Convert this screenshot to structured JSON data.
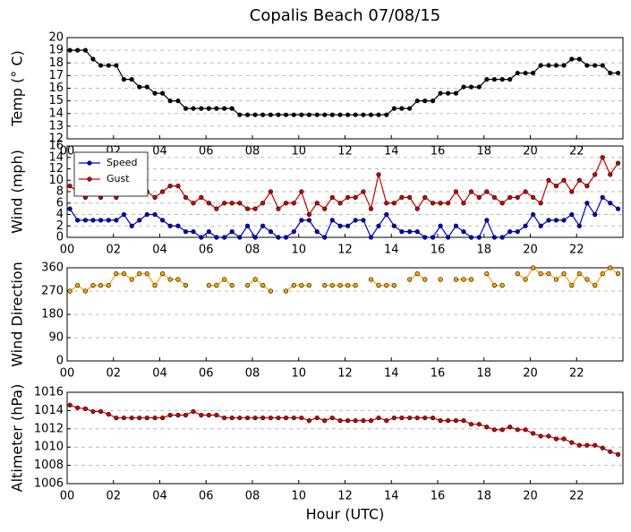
{
  "chart_data": [
    {
      "type": "line",
      "title": "Copalis Beach 07/08/15",
      "ylabel": "Temp (° C)",
      "x": [
        0.12,
        0.45,
        0.79,
        1.12,
        1.45,
        1.79,
        2.12,
        2.45,
        2.79,
        3.12,
        3.45,
        3.79,
        4.12,
        4.45,
        4.79,
        5.12,
        5.45,
        5.79,
        6.12,
        6.45,
        6.79,
        7.12,
        7.45,
        7.79,
        8.12,
        8.45,
        8.79,
        9.12,
        9.45,
        9.79,
        10.12,
        10.45,
        10.79,
        11.12,
        11.45,
        11.79,
        12.12,
        12.45,
        12.79,
        13.12,
        13.45,
        13.79,
        14.12,
        14.45,
        14.79,
        15.12,
        15.45,
        15.79,
        16.12,
        16.45,
        16.79,
        17.12,
        17.45,
        17.79,
        18.12,
        18.45,
        18.79,
        19.12,
        19.45,
        19.79,
        20.12,
        20.45,
        20.79,
        21.12,
        21.45,
        21.79,
        22.12,
        22.45,
        22.79,
        23.12,
        23.45,
        23.79
      ],
      "series": [
        {
          "name": "Temp",
          "color": "#000000",
          "values": [
            19,
            19,
            19,
            18.3,
            17.8,
            17.8,
            17.8,
            16.7,
            16.7,
            16.1,
            16.1,
            15.6,
            15.6,
            15,
            15,
            14.4,
            14.4,
            14.4,
            14.4,
            14.4,
            14.4,
            14.4,
            13.9,
            13.9,
            13.9,
            13.9,
            13.9,
            13.9,
            13.9,
            13.9,
            13.9,
            13.9,
            13.9,
            13.9,
            13.9,
            13.9,
            13.9,
            13.9,
            13.9,
            13.9,
            13.9,
            13.9,
            14.4,
            14.4,
            14.4,
            15,
            15,
            15,
            15.6,
            15.6,
            15.6,
            16.1,
            16.1,
            16.1,
            16.7,
            16.7,
            16.7,
            16.7,
            17.2,
            17.2,
            17.2,
            17.8,
            17.8,
            17.8,
            17.8,
            18.3,
            18.3,
            17.8,
            17.8,
            17.8,
            17.2,
            17.2
          ]
        }
      ],
      "xlim": [
        0,
        24
      ],
      "xticks": [
        {
          "value": 0,
          "label": "00"
        },
        {
          "value": 2,
          "label": "02"
        },
        {
          "value": 4,
          "label": "04"
        },
        {
          "value": 6,
          "label": "06"
        },
        {
          "value": 8,
          "label": "08"
        },
        {
          "value": 10,
          "label": "10"
        },
        {
          "value": 12,
          "label": "12"
        },
        {
          "value": 14,
          "label": "14"
        },
        {
          "value": 16,
          "label": "16"
        },
        {
          "value": 18,
          "label": "18"
        },
        {
          "value": 20,
          "label": "20"
        },
        {
          "value": 22,
          "label": "22"
        }
      ],
      "ylim": [
        12,
        20
      ],
      "yticks": [
        12,
        13,
        14,
        15,
        16,
        17,
        18,
        19,
        20
      ],
      "grid": true
    },
    {
      "type": "line",
      "ylabel": "Wind (mph)",
      "legend": "upper left",
      "x": [
        0.12,
        0.45,
        0.79,
        1.12,
        1.45,
        1.79,
        2.12,
        2.45,
        2.79,
        3.12,
        3.45,
        3.79,
        4.12,
        4.45,
        4.79,
        5.12,
        5.45,
        5.79,
        6.12,
        6.45,
        6.79,
        7.12,
        7.45,
        7.79,
        8.12,
        8.45,
        8.79,
        9.12,
        9.45,
        9.79,
        10.12,
        10.45,
        10.79,
        11.12,
        11.45,
        11.79,
        12.12,
        12.45,
        12.79,
        13.12,
        13.45,
        13.79,
        14.12,
        14.45,
        14.79,
        15.12,
        15.45,
        15.79,
        16.12,
        16.45,
        16.79,
        17.12,
        17.45,
        17.79,
        18.12,
        18.45,
        18.79,
        19.12,
        19.45,
        19.79,
        20.12,
        20.45,
        20.79,
        21.12,
        21.45,
        21.79,
        22.12,
        22.45,
        22.79,
        23.12,
        23.45,
        23.79
      ],
      "series": [
        {
          "name": "Speed",
          "color": "#0000cc",
          "values": [
            5,
            3,
            3,
            3,
            3,
            3,
            3,
            4,
            2,
            3,
            4,
            4,
            3,
            2,
            2,
            1,
            1,
            0,
            1,
            0,
            0,
            1,
            0,
            2,
            0,
            2,
            1,
            0,
            0,
            1,
            3,
            3,
            1,
            0,
            3,
            2,
            2,
            3,
            3,
            0,
            2,
            4,
            2,
            1,
            1,
            1,
            0,
            0,
            2,
            0,
            2,
            1,
            0,
            0,
            3,
            0,
            0,
            1,
            1,
            2,
            4,
            2,
            3,
            3,
            3,
            4,
            2,
            6,
            4,
            7,
            6,
            5
          ]
        },
        {
          "name": "Gust",
          "color": "#cc0000",
          "values": [
            9,
            8,
            7,
            8,
            7,
            8,
            7,
            8,
            8,
            8,
            8,
            7,
            8,
            9,
            9,
            7,
            6,
            7,
            6,
            5,
            6,
            6,
            6,
            5,
            5,
            6,
            8,
            5,
            6,
            6,
            8,
            4,
            6,
            5,
            7,
            6,
            7,
            7,
            8,
            5,
            11,
            6,
            6,
            7,
            7,
            5,
            7,
            6,
            6,
            6,
            8,
            6,
            8,
            7,
            8,
            7,
            6,
            7,
            7,
            8,
            7,
            6,
            10,
            9,
            10,
            8,
            10,
            9,
            11,
            14,
            11,
            13
          ]
        }
      ],
      "xlim": [
        0,
        24
      ],
      "xticks": [
        {
          "value": 0,
          "label": "00"
        },
        {
          "value": 2,
          "label": "02"
        },
        {
          "value": 4,
          "label": "04"
        },
        {
          "value": 6,
          "label": "06"
        },
        {
          "value": 8,
          "label": "08"
        },
        {
          "value": 10,
          "label": "10"
        },
        {
          "value": 12,
          "label": "12"
        },
        {
          "value": 14,
          "label": "14"
        },
        {
          "value": 16,
          "label": "16"
        },
        {
          "value": 18,
          "label": "18"
        },
        {
          "value": 20,
          "label": "20"
        },
        {
          "value": 22,
          "label": "22"
        }
      ],
      "ylim": [
        0,
        16
      ],
      "yticks": [
        0,
        2,
        4,
        6,
        8,
        10,
        12,
        14,
        16
      ],
      "grid": true
    },
    {
      "type": "line",
      "ylabel": "Wind Direction",
      "x": [
        0.12,
        0.45,
        0.79,
        1.12,
        1.45,
        1.79,
        2.12,
        2.45,
        2.79,
        3.12,
        3.45,
        3.79,
        4.12,
        4.45,
        4.79,
        5.12,
        5.45,
        5.79,
        6.12,
        6.45,
        6.79,
        7.12,
        7.45,
        7.79,
        8.12,
        8.45,
        8.79,
        9.12,
        9.45,
        9.79,
        10.12,
        10.45,
        10.79,
        11.12,
        11.45,
        11.79,
        12.12,
        12.45,
        12.79,
        13.12,
        13.45,
        13.79,
        14.12,
        14.45,
        14.79,
        15.12,
        15.45,
        15.79,
        16.12,
        16.45,
        16.79,
        17.12,
        17.45,
        17.79,
        18.12,
        18.45,
        18.79,
        19.12,
        19.45,
        19.79,
        20.12,
        20.45,
        20.79,
        21.12,
        21.45,
        21.79,
        22.12,
        22.45,
        22.79,
        23.12,
        23.45,
        23.79
      ],
      "series": [
        {
          "name": "Direction",
          "color": "#ffa500",
          "values": [
            270,
            292,
            270,
            292,
            292,
            292,
            337,
            337,
            315,
            337,
            337,
            292,
            337,
            315,
            315,
            292,
            null,
            null,
            292,
            292,
            315,
            292,
            null,
            292,
            315,
            292,
            270,
            null,
            270,
            292,
            292,
            292,
            null,
            292,
            292,
            292,
            292,
            292,
            null,
            315,
            292,
            292,
            292,
            null,
            315,
            337,
            315,
            null,
            315,
            null,
            315,
            315,
            315,
            null,
            337,
            292,
            292,
            null,
            337,
            315,
            360,
            337,
            337,
            315,
            337,
            292,
            337,
            315,
            292,
            337,
            360,
            337
          ]
        }
      ],
      "xlim": [
        0,
        24
      ],
      "xticks": [
        {
          "value": 0,
          "label": "00"
        },
        {
          "value": 2,
          "label": "02"
        },
        {
          "value": 4,
          "label": "04"
        },
        {
          "value": 6,
          "label": "06"
        },
        {
          "value": 8,
          "label": "08"
        },
        {
          "value": 10,
          "label": "10"
        },
        {
          "value": 12,
          "label": "12"
        },
        {
          "value": 14,
          "label": "14"
        },
        {
          "value": 16,
          "label": "16"
        },
        {
          "value": 18,
          "label": "18"
        },
        {
          "value": 20,
          "label": "20"
        },
        {
          "value": 22,
          "label": "22"
        }
      ],
      "ylim": [
        0,
        360
      ],
      "yticks": [
        0,
        90,
        180,
        270,
        360
      ],
      "grid": true
    },
    {
      "type": "line",
      "ylabel": "Altimeter (hPa)",
      "xlabel": "Hour (UTC)",
      "x": [
        0.12,
        0.45,
        0.79,
        1.12,
        1.45,
        1.79,
        2.12,
        2.45,
        2.79,
        3.12,
        3.45,
        3.79,
        4.12,
        4.45,
        4.79,
        5.12,
        5.45,
        5.79,
        6.12,
        6.45,
        6.79,
        7.12,
        7.45,
        7.79,
        8.12,
        8.45,
        8.79,
        9.12,
        9.45,
        9.79,
        10.12,
        10.45,
        10.79,
        11.12,
        11.45,
        11.79,
        12.12,
        12.45,
        12.79,
        13.12,
        13.45,
        13.79,
        14.12,
        14.45,
        14.79,
        15.12,
        15.45,
        15.79,
        16.12,
        16.45,
        16.79,
        17.12,
        17.45,
        17.79,
        18.12,
        18.45,
        18.79,
        19.12,
        19.45,
        19.79,
        20.12,
        20.45,
        20.79,
        21.12,
        21.45,
        21.79,
        22.12,
        22.45,
        22.79,
        23.12,
        23.45,
        23.79
      ],
      "series": [
        {
          "name": "Altimeter",
          "color": "#cc0000",
          "values": [
            1014.6,
            1014.3,
            1014.2,
            1013.9,
            1013.9,
            1013.6,
            1013.2,
            1013.2,
            1013.2,
            1013.2,
            1013.2,
            1013.2,
            1013.2,
            1013.5,
            1013.5,
            1013.5,
            1013.9,
            1013.5,
            1013.5,
            1013.5,
            1013.2,
            1013.2,
            1013.2,
            1013.2,
            1013.2,
            1013.2,
            1013.2,
            1013.2,
            1013.2,
            1013.2,
            1013.2,
            1012.9,
            1013.2,
            1012.9,
            1013.2,
            1012.9,
            1012.9,
            1012.9,
            1012.9,
            1012.9,
            1013.2,
            1012.9,
            1013.2,
            1013.2,
            1013.2,
            1013.2,
            1013.2,
            1013.2,
            1012.9,
            1012.9,
            1012.9,
            1012.9,
            1012.5,
            1012.5,
            1012.2,
            1011.9,
            1011.9,
            1012.2,
            1011.9,
            1011.9,
            1011.5,
            1011.2,
            1011.2,
            1010.9,
            1010.9,
            1010.5,
            1010.2,
            1010.2,
            1010.2,
            1009.9,
            1009.5,
            1009.2
          ]
        }
      ],
      "xlim": [
        0,
        24
      ],
      "xticks": [
        {
          "value": 0,
          "label": "00"
        },
        {
          "value": 2,
          "label": "02"
        },
        {
          "value": 4,
          "label": "04"
        },
        {
          "value": 6,
          "label": "06"
        },
        {
          "value": 8,
          "label": "08"
        },
        {
          "value": 10,
          "label": "10"
        },
        {
          "value": 12,
          "label": "12"
        },
        {
          "value": 14,
          "label": "14"
        },
        {
          "value": 16,
          "label": "16"
        },
        {
          "value": 18,
          "label": "18"
        },
        {
          "value": 20,
          "label": "20"
        },
        {
          "value": 22,
          "label": "22"
        }
      ],
      "ylim": [
        1006,
        1016
      ],
      "yticks": [
        1006,
        1008,
        1010,
        1012,
        1014,
        1016
      ],
      "grid": true
    }
  ]
}
